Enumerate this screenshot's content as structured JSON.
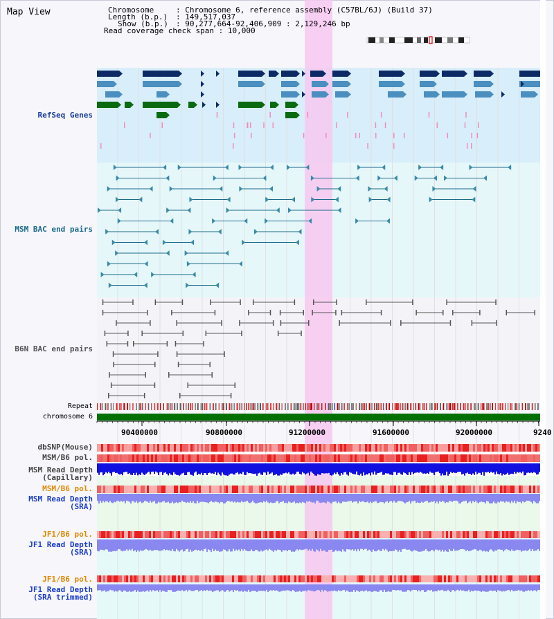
{
  "page": {
    "title": "Map View"
  },
  "info": {
    "chromosome_label": "Chromosome",
    "chromosome_value": "Chromosome 6, reference assembly (C57BL/6J) (Build 37)",
    "length_label": "Length (b.p.)",
    "length_value": "149,517,037",
    "show_label": "Show (b.p.)",
    "show_value": "90,277,664-92,406,909 : 2,129,246 bp",
    "coverage_label": "Read coverage check span",
    "coverage_value": "10,000"
  },
  "tracks": {
    "refseq": {
      "label": "RefSeq Genes",
      "color": "#1a3c9c"
    },
    "msm_bac": {
      "label": "MSM BAC end pairs",
      "color": "#1a6a8a"
    },
    "b6n_bac": {
      "label": "B6N BAC end pairs",
      "color": "#555555"
    },
    "repeat": {
      "label": "Repeat"
    },
    "chromosome": {
      "label": "chromosome 6"
    },
    "dbsnp": {
      "label": "dbSNP(Mouse)"
    },
    "msm_b6_pol_1": {
      "label": "MSM/B6 pol."
    },
    "msm_read_depth_cap": {
      "label1": "MSM Read Depth",
      "label2": "(Capillary)"
    },
    "msm_b6_pol_2": {
      "label": "MSM/B6 pol.",
      "color": "#e08a00"
    },
    "msm_read_depth_sra": {
      "label1": "MSM Read Depth",
      "label2": "(SRA)",
      "color": "#1a3cc8"
    },
    "jf1_b6_pol_1": {
      "label": "JF1/B6 pol.",
      "color": "#e08a00"
    },
    "jf1_read_depth_sra": {
      "label1": "JF1 Read Depth",
      "label2": "(SRA)",
      "color": "#1a3cc8"
    },
    "jf1_b6_pol_2": {
      "label": "JF1/B6 pol.",
      "color": "#e08a00"
    },
    "jf1_read_depth_trim": {
      "label1": "JF1 Read Depth",
      "label2": "(SRA trimmed)",
      "color": "#1a3cc8"
    }
  },
  "axis": {
    "ticks": [
      "90400000",
      "90800000",
      "91200000",
      "91600000",
      "92000000",
      "9240"
    ]
  },
  "colors": {
    "highlight": "#f7c8f0",
    "refseq_bg": "#d8eefa",
    "msm_bg": "#e6f7fa",
    "b6n_bg": "#f4f4f8",
    "chrom_bar": "#007000",
    "gene_dark": "#0c2a66",
    "gene_mid": "#4a8fc0",
    "gene_green": "#0a6a10",
    "depth_blue": "#1010e0",
    "depth_light": "#8888f0"
  }
}
